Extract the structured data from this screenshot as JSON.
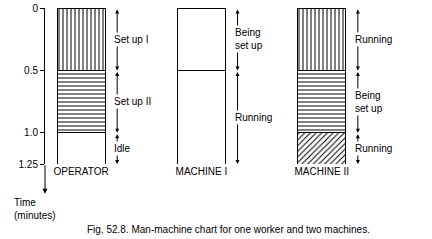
{
  "chart_data": {
    "type": "bar",
    "stacked": true,
    "categories": [
      "OPERATOR",
      "MACHINE I",
      "MACHINE II"
    ],
    "series": [
      {
        "values": [
          0.5,
          0.5,
          0.5
        ],
        "labels": [
          "Set up I",
          "Being\nset up",
          "Running"
        ],
        "markers": [
          "vertical",
          "none",
          "vertical"
        ]
      },
      {
        "values": [
          0.5,
          0.75,
          0.5
        ],
        "labels": [
          "Set up II",
          "Running",
          "Being\nset up"
        ],
        "markers": [
          "horizontal",
          "none",
          "horizontal"
        ]
      },
      {
        "values": [
          0.25,
          null,
          0.25
        ],
        "labels": [
          "Idle",
          null,
          "Running"
        ],
        "markers": [
          "none",
          null,
          "diagonal"
        ]
      }
    ],
    "color": "#ffffff",
    "y_label": "Time\n(minutes)",
    "ylim": [
      0,
      1.25
    ],
    "yticks": [
      0,
      0.5,
      {
        "value": 1,
        "label": "1.0"
      },
      1.25
    ],
    "grid": false,
    "caption": "Fig. 52.8. Man-machine chart for one worker and two machines."
  }
}
